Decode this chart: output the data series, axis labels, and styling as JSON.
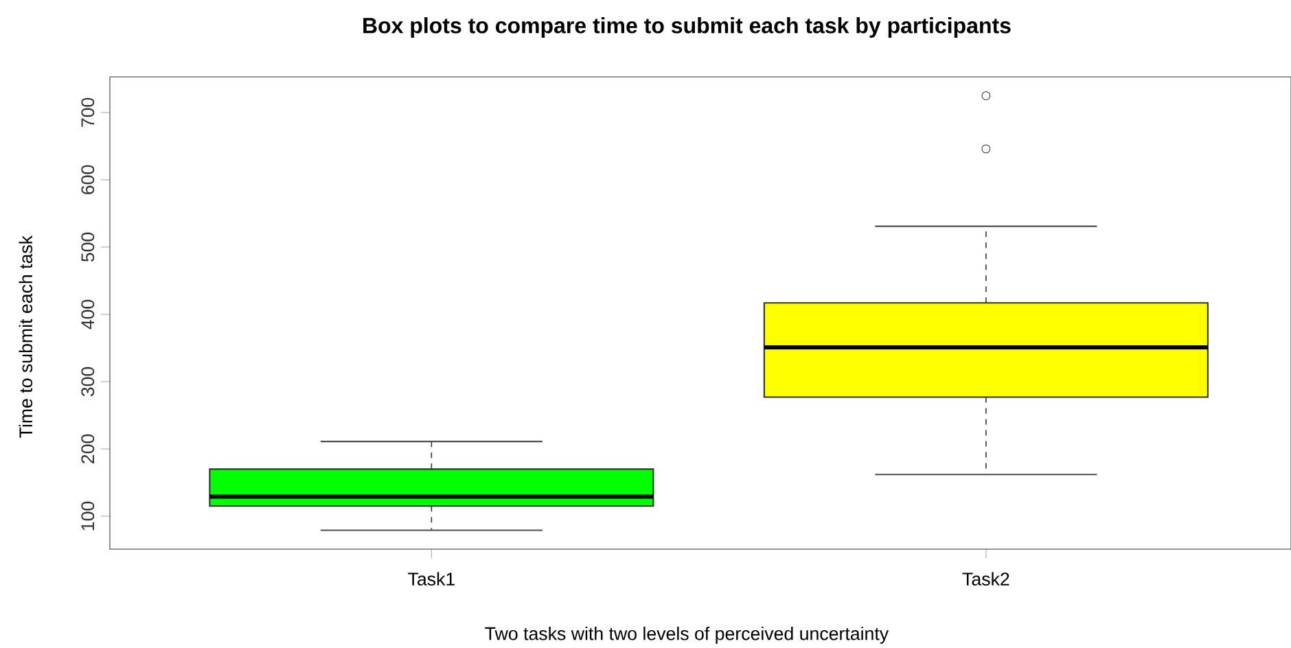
{
  "chart_data": {
    "type": "box",
    "title": "Box plots to compare time to submit each task by participants",
    "xlabel": "Two tasks with two levels of perceived uncertainty",
    "ylabel": "Time to submit each task",
    "categories": [
      "Task1",
      "Task2"
    ],
    "colors": [
      "#00ff00",
      "#ffff00"
    ],
    "boxes": [
      {
        "low": 79,
        "q1": 115,
        "median": 129,
        "q3": 170,
        "high": 211
      },
      {
        "low": 162,
        "q1": 277,
        "median": 351,
        "q3": 417,
        "high": 531,
        "outliers": [
          646,
          725
        ]
      }
    ],
    "ylim": [
      51,
      753
    ],
    "yticks": [
      100,
      200,
      300,
      400,
      500,
      600,
      700
    ]
  }
}
